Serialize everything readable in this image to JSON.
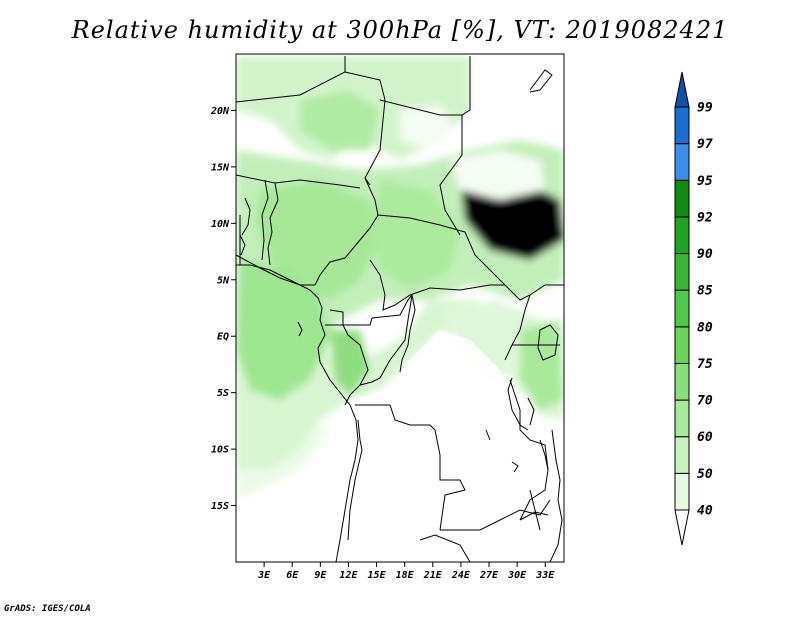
{
  "title": "Relative humidity at 300hPa [%], VT: 2019082421",
  "footer": "GrADS: IGES/COLA",
  "map": {
    "lon_range": [
      0,
      35
    ],
    "lat_range": [
      -20,
      25
    ],
    "lat_ticks": [
      {
        "value": 20,
        "label": "20N"
      },
      {
        "value": 15,
        "label": "15N"
      },
      {
        "value": 10,
        "label": "10N"
      },
      {
        "value": 5,
        "label": "5N"
      },
      {
        "value": 0,
        "label": "EQ"
      },
      {
        "value": -5,
        "label": "5S"
      },
      {
        "value": -10,
        "label": "10S"
      },
      {
        "value": -15,
        "label": "15S"
      }
    ],
    "lon_ticks": [
      {
        "value": 3,
        "label": "3E"
      },
      {
        "value": 6,
        "label": "6E"
      },
      {
        "value": 9,
        "label": "9E"
      },
      {
        "value": 12,
        "label": "12E"
      },
      {
        "value": 15,
        "label": "15E"
      },
      {
        "value": 18,
        "label": "18E"
      },
      {
        "value": 21,
        "label": "21E"
      },
      {
        "value": 24,
        "label": "24E"
      },
      {
        "value": 27,
        "label": "27E"
      },
      {
        "value": 30,
        "label": "30E"
      },
      {
        "value": 33,
        "label": "33E"
      }
    ]
  },
  "colorbar": {
    "levels": [
      "40",
      "50",
      "60",
      "70",
      "75",
      "80",
      "85",
      "90",
      "92",
      "95",
      "97",
      "99"
    ],
    "colors": [
      "#ffffff",
      "#e6fae2",
      "#c8f2bf",
      "#a8e99b",
      "#88de7a",
      "#6ad35e",
      "#52c84a",
      "#3cb43a",
      "#22a222",
      "#138a13",
      "#3d8ee6",
      "#1e6ed2",
      "#1450a8"
    ]
  }
}
